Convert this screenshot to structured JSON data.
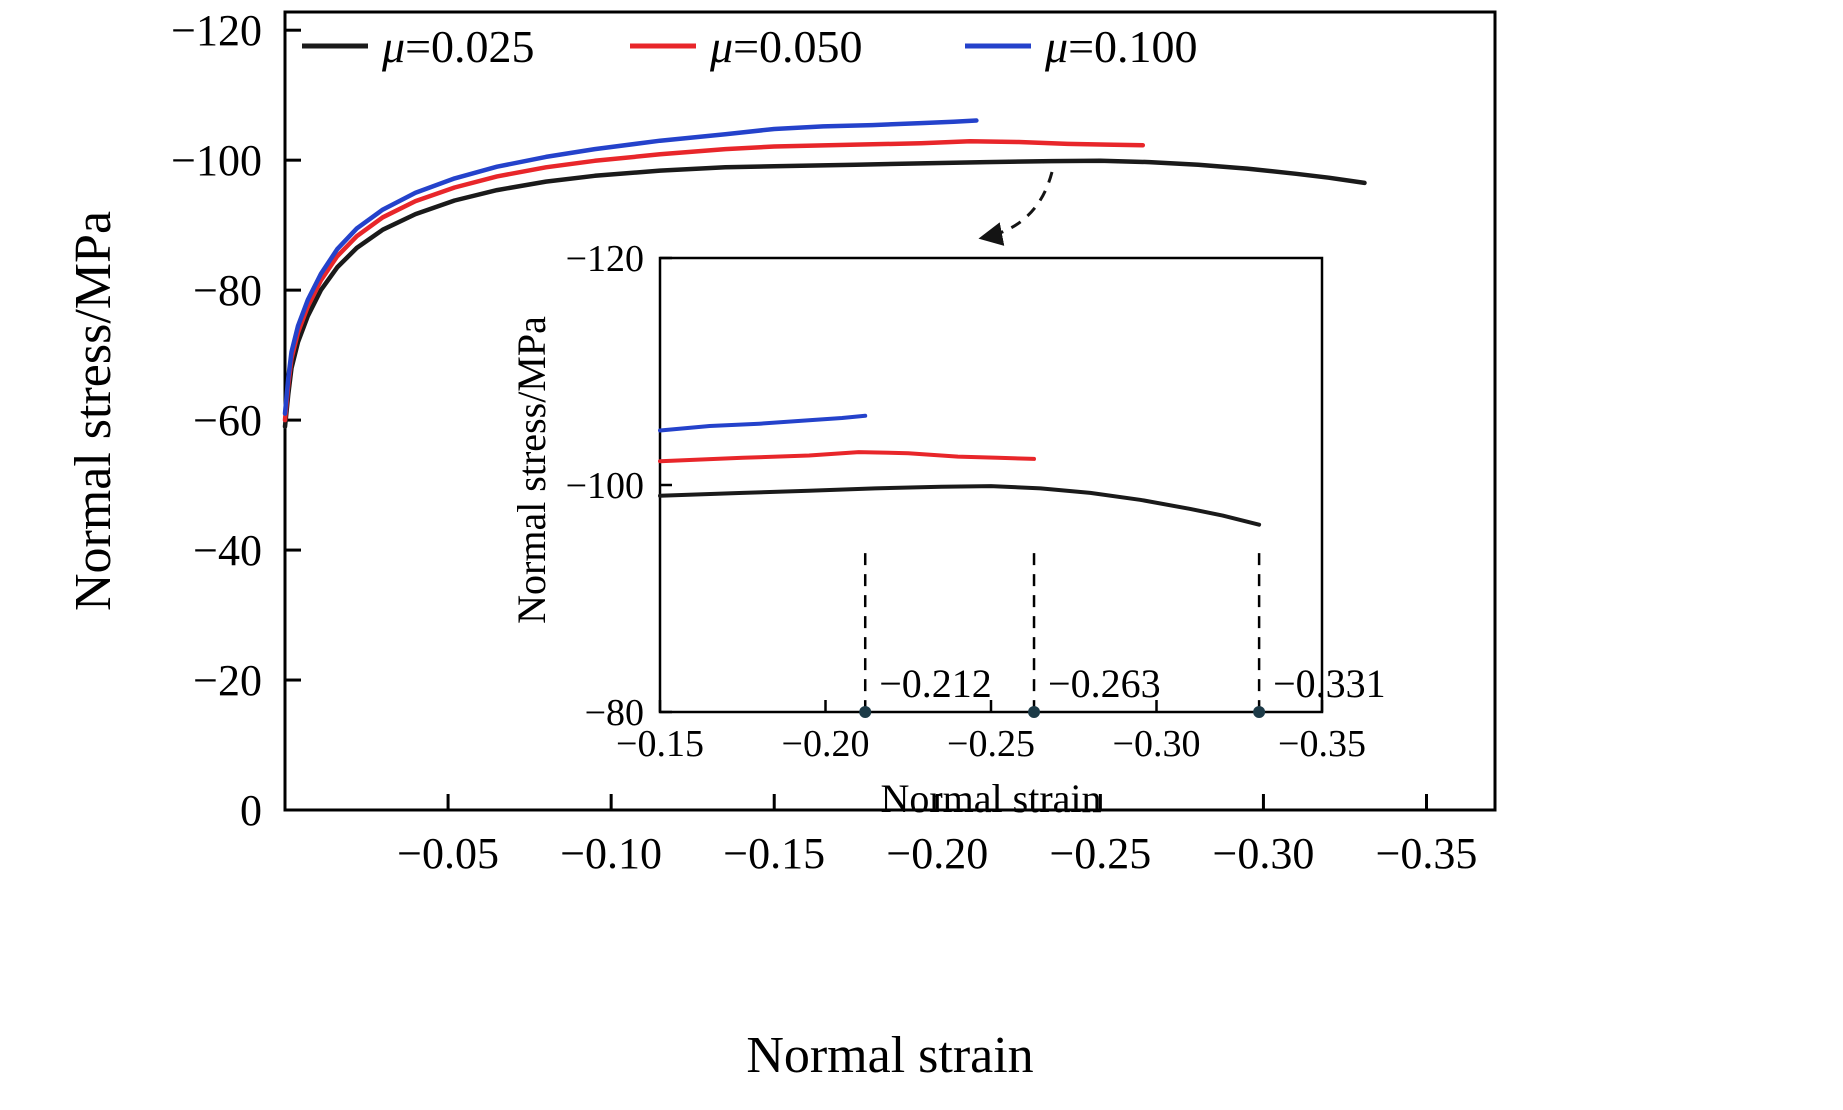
{
  "figure": {
    "background": "#ffffff"
  },
  "chart_data": {
    "type": "line",
    "title": "",
    "colors": {
      "mu_0025": "#1a1a1a",
      "mu_0050": "#e8262a",
      "mu_0100": "#2442cb",
      "annotation_dot": "#1c3a47",
      "axis": "#000000"
    },
    "main": {
      "xlabel": "Normal strain",
      "ylabel": "Normal stress/MPa",
      "xlim": [
        0,
        -0.371
      ],
      "ylim": [
        0,
        -122.8
      ],
      "grid": false,
      "legend_position": "top-inside",
      "xtick_values": [
        -0.05,
        -0.1,
        -0.15,
        -0.2,
        -0.25,
        -0.3,
        -0.35
      ],
      "xtick_labels": [
        "−0.05",
        "−0.10",
        "−0.15",
        "−0.20",
        "−0.25",
        "−0.30",
        "−0.35"
      ],
      "ytick_values": [
        0,
        -20,
        -40,
        -60,
        -80,
        -100,
        -120
      ],
      "ytick_labels": [
        "0",
        "−20",
        "−40",
        "−60",
        "−80",
        "−100",
        "−120"
      ],
      "legend": [
        {
          "symbol": "μ",
          "value": "=0.025",
          "color": "#1a1a1a"
        },
        {
          "symbol": "μ",
          "value": "=0.050",
          "color": "#e8262a"
        },
        {
          "symbol": "μ",
          "value": "=0.100",
          "color": "#2442cb"
        }
      ]
    },
    "series": [
      {
        "id": "mu-0025",
        "name": "μ=0.025",
        "color": "#1a1a1a",
        "points": [
          [
            0,
            -59
          ],
          [
            -0.001,
            -64
          ],
          [
            -0.002,
            -68
          ],
          [
            -0.004,
            -72
          ],
          [
            -0.007,
            -76
          ],
          [
            -0.011,
            -80
          ],
          [
            -0.016,
            -83.5
          ],
          [
            -0.022,
            -86.5
          ],
          [
            -0.03,
            -89.3
          ],
          [
            -0.04,
            -91.7
          ],
          [
            -0.052,
            -93.8
          ],
          [
            -0.065,
            -95.4
          ],
          [
            -0.08,
            -96.7
          ],
          [
            -0.095,
            -97.6
          ],
          [
            -0.115,
            -98.4
          ],
          [
            -0.135,
            -98.9
          ],
          [
            -0.15,
            -99.05
          ],
          [
            -0.175,
            -99.3
          ],
          [
            -0.195,
            -99.5
          ],
          [
            -0.215,
            -99.7
          ],
          [
            -0.235,
            -99.85
          ],
          [
            -0.25,
            -99.9
          ],
          [
            -0.265,
            -99.7
          ],
          [
            -0.28,
            -99.3
          ],
          [
            -0.295,
            -98.7
          ],
          [
            -0.31,
            -97.9
          ],
          [
            -0.32,
            -97.3
          ],
          [
            -0.331,
            -96.5
          ]
        ]
      },
      {
        "id": "mu-0050",
        "name": "μ=0.050",
        "color": "#e8262a",
        "points": [
          [
            0,
            -60
          ],
          [
            -0.001,
            -65.5
          ],
          [
            -0.002,
            -69.5
          ],
          [
            -0.004,
            -73.5
          ],
          [
            -0.007,
            -77.5
          ],
          [
            -0.011,
            -81.5
          ],
          [
            -0.016,
            -85.2
          ],
          [
            -0.022,
            -88.3
          ],
          [
            -0.03,
            -91.2
          ],
          [
            -0.04,
            -93.7
          ],
          [
            -0.052,
            -95.8
          ],
          [
            -0.065,
            -97.5
          ],
          [
            -0.08,
            -98.9
          ],
          [
            -0.095,
            -99.9
          ],
          [
            -0.115,
            -100.9
          ],
          [
            -0.135,
            -101.7
          ],
          [
            -0.15,
            -102.1
          ],
          [
            -0.175,
            -102.4
          ],
          [
            -0.195,
            -102.6
          ],
          [
            -0.21,
            -102.9
          ],
          [
            -0.225,
            -102.8
          ],
          [
            -0.24,
            -102.5
          ],
          [
            -0.252,
            -102.4
          ],
          [
            -0.263,
            -102.3
          ]
        ]
      },
      {
        "id": "mu-0100",
        "name": "μ=0.100",
        "color": "#2442cb",
        "points": [
          [
            0,
            -61
          ],
          [
            -0.001,
            -66.5
          ],
          [
            -0.002,
            -70.5
          ],
          [
            -0.004,
            -74.5
          ],
          [
            -0.007,
            -78.5
          ],
          [
            -0.011,
            -82.5
          ],
          [
            -0.016,
            -86.3
          ],
          [
            -0.022,
            -89.5
          ],
          [
            -0.03,
            -92.4
          ],
          [
            -0.04,
            -95
          ],
          [
            -0.052,
            -97.2
          ],
          [
            -0.065,
            -99
          ],
          [
            -0.08,
            -100.5
          ],
          [
            -0.095,
            -101.7
          ],
          [
            -0.115,
            -103
          ],
          [
            -0.135,
            -104
          ],
          [
            -0.15,
            -104.8
          ],
          [
            -0.165,
            -105.2
          ],
          [
            -0.18,
            -105.4
          ],
          [
            -0.195,
            -105.7
          ],
          [
            -0.205,
            -105.9
          ],
          [
            -0.212,
            -106.1
          ]
        ]
      }
    ],
    "inset": {
      "xlabel": "Normal strain",
      "ylabel": "Normal stress/MPa",
      "xlim": [
        -0.15,
        -0.35
      ],
      "ylim": [
        -80,
        -120
      ],
      "grid": false,
      "xtick_values": [
        -0.15,
        -0.2,
        -0.25,
        -0.3,
        -0.35
      ],
      "xtick_labels": [
        "−0.15",
        "−0.20",
        "−0.25",
        "−0.30",
        "−0.35"
      ],
      "ytick_values": [
        -80,
        -100,
        -120
      ],
      "ytick_labels": [
        "−80",
        "−100",
        "−120"
      ],
      "annotations": [
        {
          "x": -0.212,
          "label": "−0.212"
        },
        {
          "x": -0.263,
          "label": "−0.263"
        },
        {
          "x": -0.331,
          "label": "−0.331"
        }
      ]
    }
  }
}
